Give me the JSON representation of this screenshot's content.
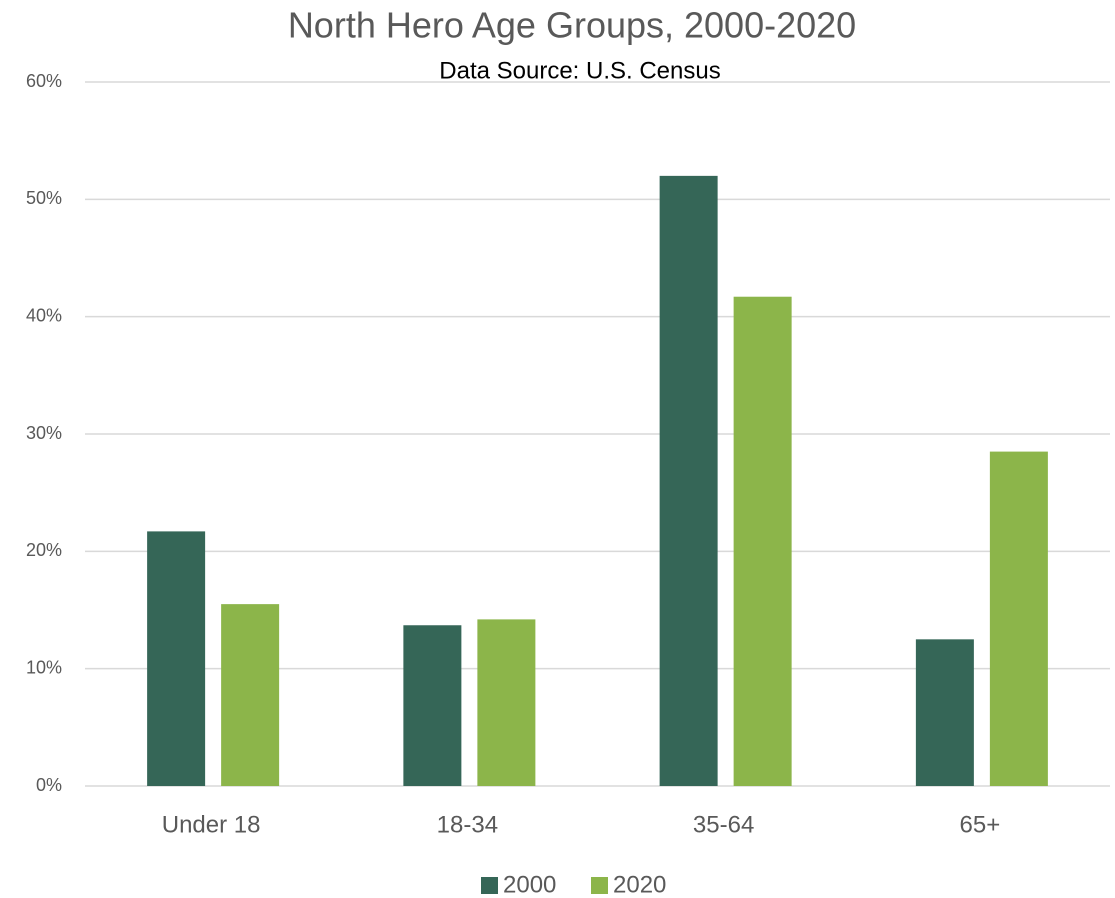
{
  "chart_data": {
    "type": "bar",
    "title": "North Hero Age Groups, 2000-2020",
    "subtitle": "Data Source: U.S. Census",
    "categories": [
      "Under 18",
      "18-34",
      "35-64",
      "65+"
    ],
    "series": [
      {
        "name": "2000",
        "color": "#356657",
        "values": [
          21.7,
          13.7,
          52,
          12.5
        ]
      },
      {
        "name": "2020",
        "color": "#8cb54a",
        "values": [
          15.5,
          14.2,
          41.7,
          28.5
        ]
      }
    ],
    "ylim": [
      0,
      60
    ],
    "yticks": [
      {
        "value": 0,
        "label": "0%"
      },
      {
        "value": 10,
        "label": "10%"
      },
      {
        "value": 20,
        "label": "20%"
      },
      {
        "value": 30,
        "label": "30%"
      },
      {
        "value": 40,
        "label": "40%"
      },
      {
        "value": 50,
        "label": "50%"
      },
      {
        "value": 60,
        "label": "60%"
      }
    ],
    "grid": true,
    "legend": "bottom"
  }
}
